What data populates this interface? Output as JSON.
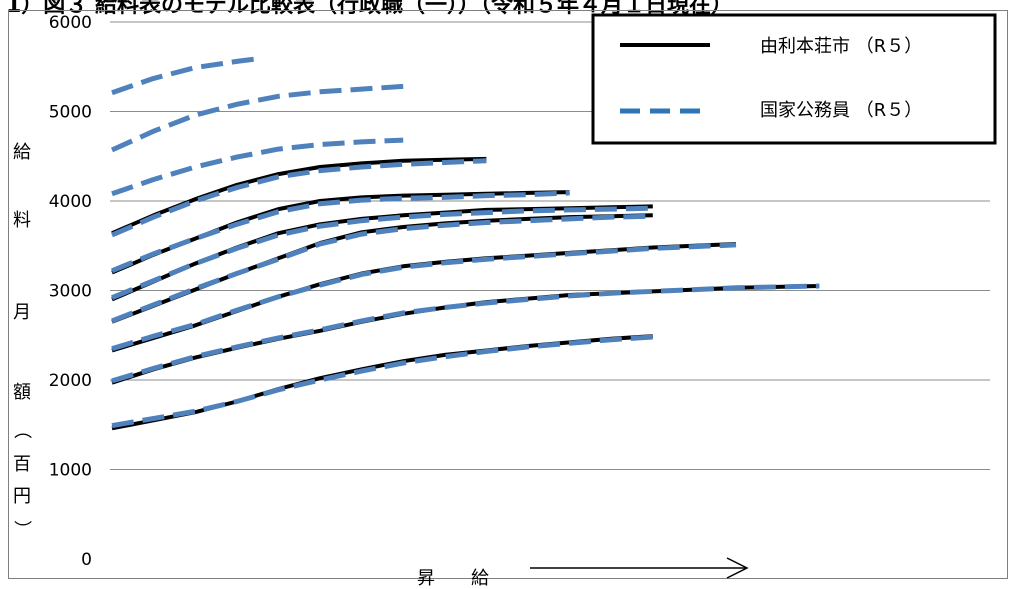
{
  "page_title_fragment": "1）図３  給料表のモデル比較表（行政職（一））（令和５年４月１日現在）",
  "chart_data": {
    "type": "line",
    "title": "",
    "ylabel_chars": [
      "給",
      "料",
      "月",
      "額",
      "（",
      "百",
      "円",
      "）"
    ],
    "xlabel": "昇　　給",
    "ylim": [
      0,
      6000
    ],
    "yticks": [
      "0",
      "1000",
      "2000",
      "3000",
      "4000",
      "5000",
      "6000"
    ],
    "grid": true,
    "legend_position": "top-right",
    "legend": [
      {
        "label": "由利本荘市 （R５）",
        "style": "solid",
        "color": "#000000"
      },
      {
        "label": "国家公務員 （R５）",
        "style": "dashed",
        "color": "#4f81bd"
      }
    ],
    "series": [
      {
        "name": "由利本荘市 （R５）",
        "color": "#000000",
        "style": "solid",
        "curves": [
          [
            [
              0,
              1460
            ],
            [
              2,
              1550
            ],
            [
              4,
              1640
            ],
            [
              6,
              1760
            ],
            [
              8,
              1900
            ],
            [
              10,
              2020
            ],
            [
              12,
              2120
            ],
            [
              14,
              2210
            ],
            [
              16,
              2280
            ],
            [
              18,
              2330
            ],
            [
              20,
              2380
            ],
            [
              22,
              2420
            ],
            [
              24,
              2460
            ],
            [
              26,
              2490
            ]
          ],
          [
            [
              0,
              1970
            ],
            [
              2,
              2120
            ],
            [
              4,
              2250
            ],
            [
              6,
              2360
            ],
            [
              8,
              2460
            ],
            [
              10,
              2550
            ],
            [
              12,
              2650
            ],
            [
              14,
              2740
            ],
            [
              16,
              2810
            ],
            [
              18,
              2870
            ],
            [
              20,
              2910
            ],
            [
              22,
              2950
            ],
            [
              24,
              2970
            ],
            [
              26,
              2990
            ],
            [
              28,
              3010
            ],
            [
              30,
              3030
            ],
            [
              32,
              3040
            ],
            [
              34,
              3050
            ]
          ],
          [
            [
              0,
              2330
            ],
            [
              2,
              2470
            ],
            [
              4,
              2610
            ],
            [
              6,
              2770
            ],
            [
              8,
              2930
            ],
            [
              10,
              3070
            ],
            [
              12,
              3190
            ],
            [
              14,
              3270
            ],
            [
              16,
              3320
            ],
            [
              18,
              3360
            ],
            [
              20,
              3390
            ],
            [
              22,
              3420
            ],
            [
              24,
              3450
            ],
            [
              26,
              3480
            ],
            [
              28,
              3500
            ],
            [
              30,
              3520
            ]
          ],
          [
            [
              0,
              2650
            ],
            [
              2,
              2830
            ],
            [
              4,
              3010
            ],
            [
              6,
              3190
            ],
            [
              8,
              3360
            ],
            [
              10,
              3530
            ],
            [
              12,
              3650
            ],
            [
              14,
              3710
            ],
            [
              16,
              3750
            ],
            [
              18,
              3780
            ],
            [
              20,
              3800
            ],
            [
              22,
              3820
            ],
            [
              24,
              3830
            ],
            [
              26,
              3840
            ]
          ],
          [
            [
              0,
              2900
            ],
            [
              2,
              3100
            ],
            [
              4,
              3300
            ],
            [
              6,
              3480
            ],
            [
              8,
              3640
            ],
            [
              10,
              3740
            ],
            [
              12,
              3800
            ],
            [
              14,
              3840
            ],
            [
              16,
              3870
            ],
            [
              18,
              3900
            ],
            [
              20,
              3910
            ],
            [
              22,
              3920
            ],
            [
              24,
              3930
            ],
            [
              26,
              3940
            ]
          ],
          [
            [
              0,
              3200
            ],
            [
              2,
              3400
            ],
            [
              4,
              3580
            ],
            [
              6,
              3760
            ],
            [
              8,
              3910
            ],
            [
              10,
              4000
            ],
            [
              12,
              4040
            ],
            [
              14,
              4060
            ],
            [
              16,
              4070
            ],
            [
              18,
              4080
            ],
            [
              20,
              4090
            ],
            [
              22,
              4100
            ]
          ],
          [
            [
              0,
              3640
            ],
            [
              2,
              3840
            ],
            [
              4,
              4020
            ],
            [
              6,
              4180
            ],
            [
              8,
              4300
            ],
            [
              10,
              4380
            ],
            [
              12,
              4420
            ],
            [
              14,
              4450
            ],
            [
              16,
              4460
            ],
            [
              18,
              4470
            ]
          ]
        ]
      },
      {
        "name": "国家公務員 （R５）",
        "color": "#4f81bd",
        "style": "dashed",
        "curves": [
          [
            [
              0,
              1490
            ],
            [
              2,
              1570
            ],
            [
              4,
              1650
            ],
            [
              6,
              1760
            ],
            [
              8,
              1890
            ],
            [
              10,
              2000
            ],
            [
              12,
              2100
            ],
            [
              14,
              2190
            ],
            [
              16,
              2260
            ],
            [
              18,
              2320
            ],
            [
              20,
              2370
            ],
            [
              22,
              2410
            ],
            [
              24,
              2450
            ],
            [
              26,
              2480
            ]
          ],
          [
            [
              0,
              1990
            ],
            [
              2,
              2130
            ],
            [
              4,
              2260
            ],
            [
              6,
              2370
            ],
            [
              8,
              2470
            ],
            [
              10,
              2560
            ],
            [
              12,
              2660
            ],
            [
              14,
              2750
            ],
            [
              16,
              2810
            ],
            [
              18,
              2860
            ],
            [
              20,
              2900
            ],
            [
              22,
              2940
            ],
            [
              24,
              2970
            ],
            [
              26,
              2990
            ],
            [
              28,
              3010
            ],
            [
              30,
              3030
            ],
            [
              32,
              3040
            ],
            [
              34,
              3050
            ]
          ],
          [
            [
              0,
              2350
            ],
            [
              2,
              2490
            ],
            [
              4,
              2620
            ],
            [
              6,
              2780
            ],
            [
              8,
              2930
            ],
            [
              10,
              3060
            ],
            [
              12,
              3180
            ],
            [
              14,
              3260
            ],
            [
              16,
              3310
            ],
            [
              18,
              3350
            ],
            [
              20,
              3380
            ],
            [
              22,
              3410
            ],
            [
              24,
              3440
            ],
            [
              26,
              3470
            ],
            [
              28,
              3490
            ],
            [
              30,
              3510
            ]
          ],
          [
            [
              0,
              2660
            ],
            [
              2,
              2840
            ],
            [
              4,
              3020
            ],
            [
              6,
              3190
            ],
            [
              8,
              3350
            ],
            [
              10,
              3520
            ],
            [
              12,
              3630
            ],
            [
              14,
              3690
            ],
            [
              16,
              3730
            ],
            [
              18,
              3760
            ],
            [
              20,
              3780
            ],
            [
              22,
              3800
            ],
            [
              24,
              3820
            ],
            [
              26,
              3830
            ]
          ],
          [
            [
              0,
              2920
            ],
            [
              2,
              3110
            ],
            [
              4,
              3300
            ],
            [
              6,
              3470
            ],
            [
              8,
              3620
            ],
            [
              10,
              3720
            ],
            [
              12,
              3780
            ],
            [
              14,
              3820
            ],
            [
              16,
              3850
            ],
            [
              18,
              3870
            ],
            [
              20,
              3890
            ],
            [
              22,
              3900
            ],
            [
              24,
              3910
            ],
            [
              26,
              3920
            ]
          ],
          [
            [
              0,
              3220
            ],
            [
              2,
              3410
            ],
            [
              4,
              3580
            ],
            [
              6,
              3740
            ],
            [
              8,
              3880
            ],
            [
              10,
              3970
            ],
            [
              12,
              4010
            ],
            [
              14,
              4030
            ],
            [
              16,
              4040
            ],
            [
              18,
              4060
            ],
            [
              20,
              4070
            ],
            [
              22,
              4090
            ]
          ],
          [
            [
              0,
              3620
            ],
            [
              2,
              3820
            ],
            [
              4,
              4000
            ],
            [
              6,
              4150
            ],
            [
              8,
              4270
            ],
            [
              10,
              4340
            ],
            [
              12,
              4380
            ],
            [
              14,
              4410
            ],
            [
              16,
              4430
            ],
            [
              18,
              4450
            ]
          ],
          [
            [
              0,
              4080
            ],
            [
              2,
              4240
            ],
            [
              4,
              4380
            ],
            [
              6,
              4490
            ],
            [
              8,
              4580
            ],
            [
              10,
              4630
            ],
            [
              12,
              4660
            ],
            [
              14,
              4680
            ]
          ],
          [
            [
              0,
              4570
            ],
            [
              2,
              4780
            ],
            [
              4,
              4960
            ],
            [
              6,
              5080
            ],
            [
              8,
              5170
            ],
            [
              10,
              5220
            ],
            [
              12,
              5250
            ],
            [
              14,
              5280
            ]
          ],
          [
            [
              0,
              5210
            ],
            [
              2,
              5370
            ],
            [
              4,
              5490
            ],
            [
              6,
              5560
            ],
            [
              7,
              5590
            ]
          ]
        ]
      }
    ]
  }
}
